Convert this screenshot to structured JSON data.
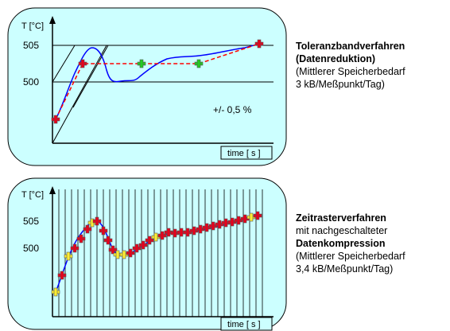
{
  "panels": [
    {
      "ylabel": "T [°C]",
      "xlabel": "time [ s ]",
      "y_ticks": [
        "505",
        "500"
      ],
      "annotation": "+/- 0,5 %",
      "description": {
        "title": "Toleranzbandverfahren",
        "subtitle": "(Datenreduktion)",
        "line1": "(Mittlerer Speicherbedarf",
        "line2": "3 kB/Meßpunkt/Tag)"
      },
      "colors": {
        "panel_fill": "#ccffff",
        "curve": "#0000ff",
        "reduced": "#ff0000",
        "marker_red": "#e8001c",
        "marker_green": "#22cc22"
      }
    },
    {
      "ylabel": "T [°C]",
      "xlabel": "time [ s ]",
      "y_ticks": [
        "505",
        "500"
      ],
      "description": {
        "title": "Zeitrasterverfahren",
        "line1": "mit nachgeschalteter",
        "title2": "Datenkompression",
        "line2": "(Mittlerer Speicherbedarf",
        "line3": "3,4 kB/Meßpunkt/Tag)"
      },
      "colors": {
        "panel_fill": "#ccffff",
        "curve": "#0000ff",
        "marker_red": "#e8001c",
        "marker_yellow": "#ffee33"
      }
    }
  ]
}
